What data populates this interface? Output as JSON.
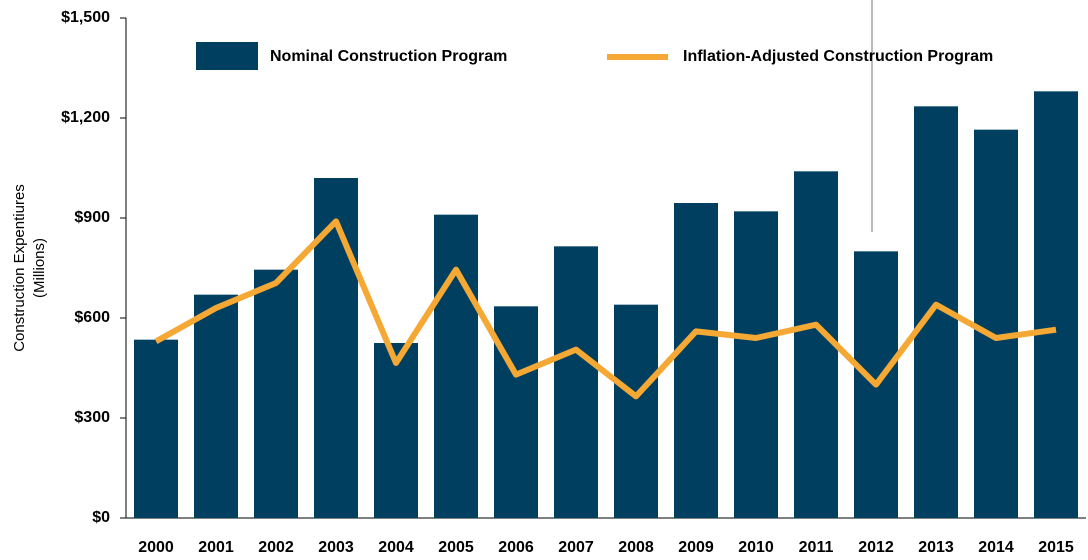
{
  "chart_data": {
    "type": "bar",
    "ylabel": [
      "Construction Expentiures",
      "(Millions)"
    ],
    "categories": [
      "2000",
      "2001",
      "2002",
      "2003",
      "2004",
      "2005",
      "2006",
      "2007",
      "2008",
      "2009",
      "2010",
      "2011",
      "2012",
      "2013",
      "2014",
      "2015"
    ],
    "series": [
      {
        "name": "Nominal Construction Program",
        "type": "bar",
        "color": "#003f5f",
        "values": [
          535,
          670,
          745,
          1020,
          525,
          910,
          635,
          815,
          640,
          945,
          920,
          1040,
          800,
          1235,
          1165,
          1280
        ]
      },
      {
        "name": "Inflation-Adjusted Construction Program",
        "type": "line",
        "color": "#f5a833",
        "values": [
          530,
          630,
          705,
          890,
          465,
          745,
          430,
          505,
          365,
          560,
          540,
          580,
          400,
          640,
          540,
          565
        ]
      }
    ],
    "ylim": [
      0,
      1500
    ],
    "yticks": [
      {
        "value": 0,
        "label": "$0"
      },
      {
        "value": 300,
        "label": "$300"
      },
      {
        "value": 600,
        "label": "$600"
      },
      {
        "value": 900,
        "label": "$900"
      },
      {
        "value": 1200,
        "label": "$1,200"
      },
      {
        "value": 1500,
        "label": "$1,500"
      }
    ]
  }
}
